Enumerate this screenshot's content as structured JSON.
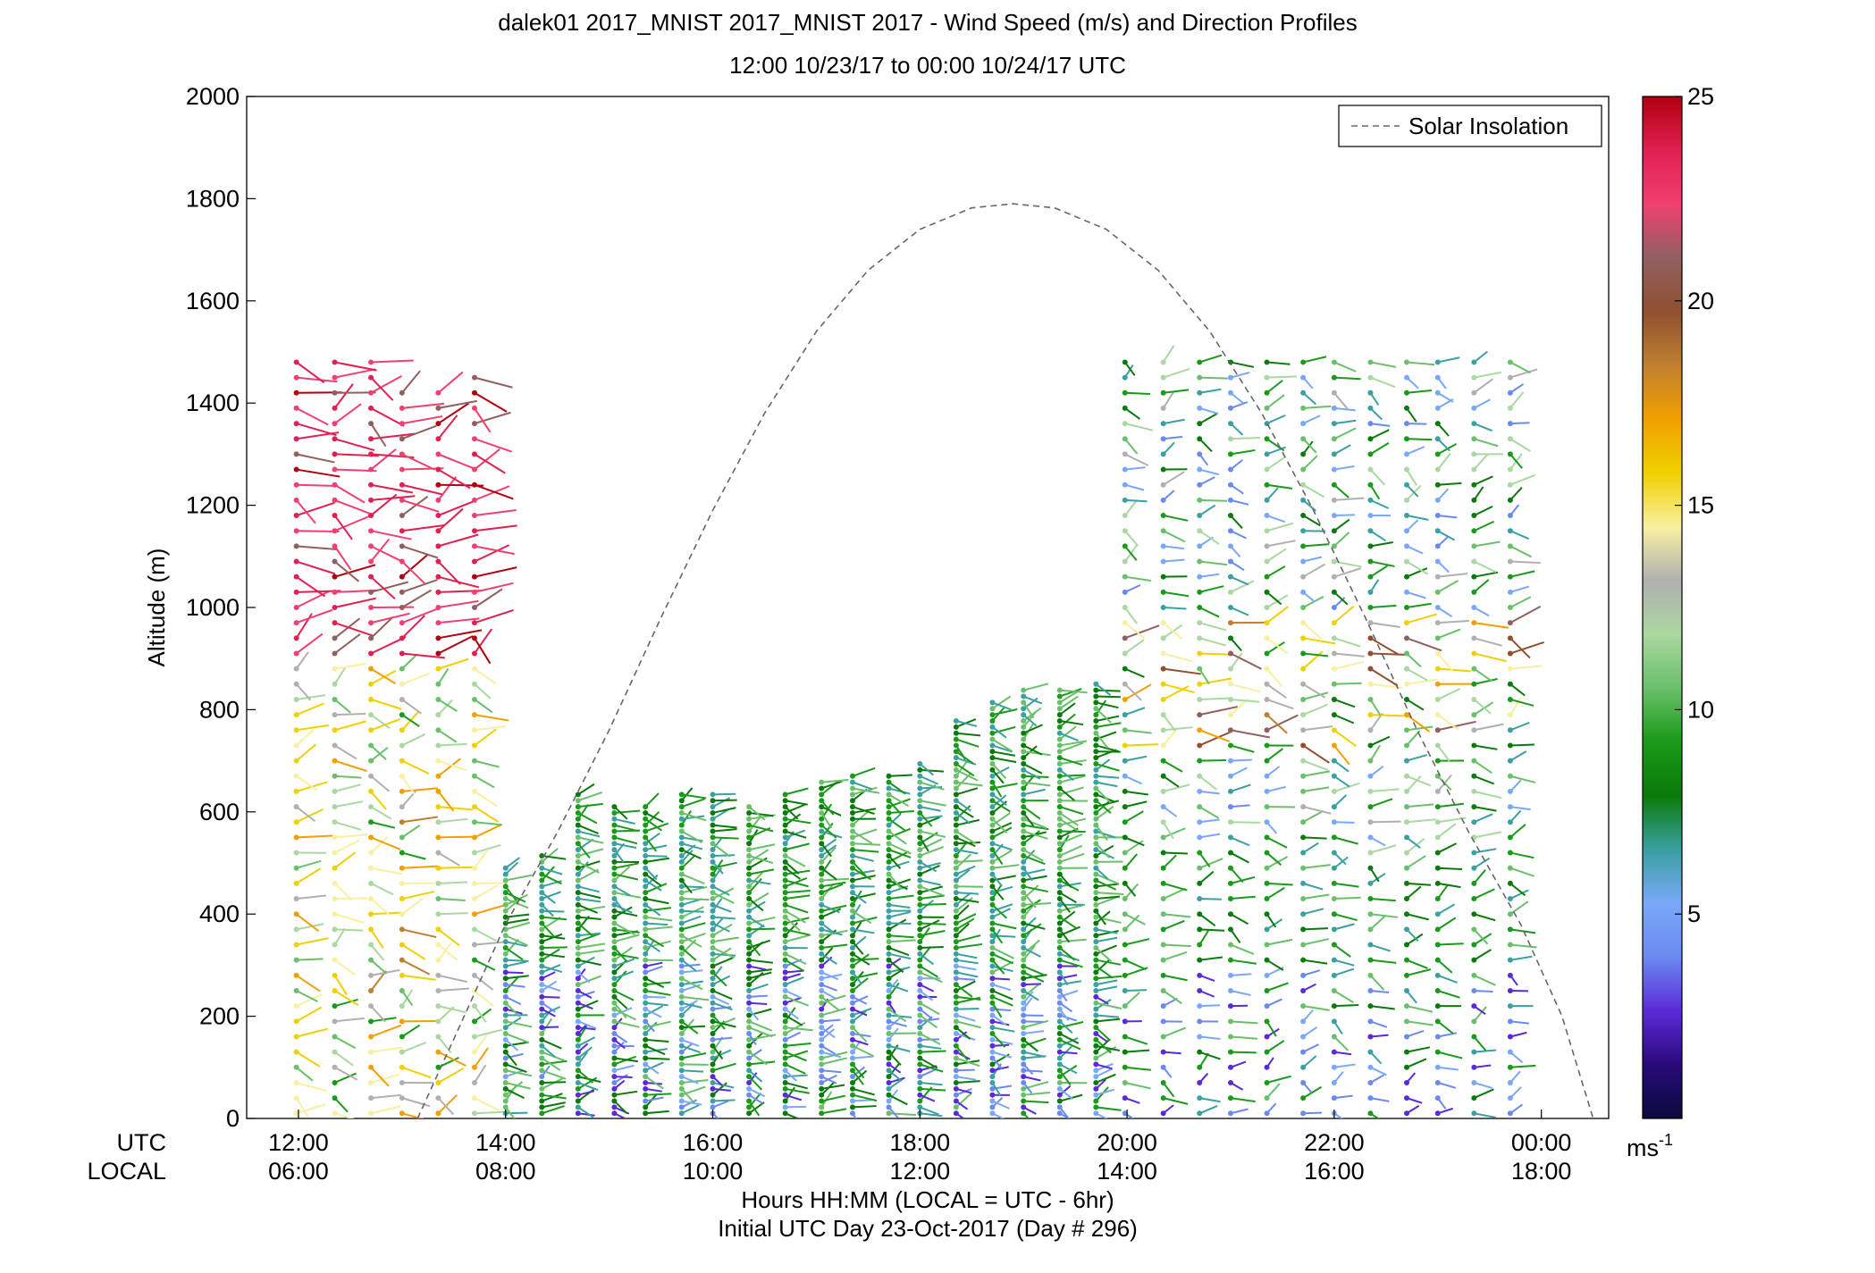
{
  "chart_data": {
    "type": "scatter",
    "title": "dalek01 2017_MNIST 2017_MNIST 2017 - Wind Speed (m/s) and Direction Profiles",
    "subtitle": "12:00 10/23/17 to 00:00 10/24/17  UTC",
    "ylabel": "Altitude (m)",
    "xlabel": "Hours HH:MM  (LOCAL = UTC - 6hr)",
    "xlabel2": "Initial UTC Day 23-Oct-2017 (Day # 296)",
    "x_row_label_utc": "UTC",
    "x_row_label_local": "LOCAL",
    "xlim_hours_utc": [
      11.5,
      24.65
    ],
    "ylim": [
      0,
      2000
    ],
    "yticks": [
      0,
      200,
      400,
      600,
      800,
      1000,
      1200,
      1400,
      1600,
      1800,
      2000
    ],
    "xticks": [
      {
        "h": 12,
        "utc": "12:00",
        "local": "06:00"
      },
      {
        "h": 14,
        "utc": "14:00",
        "local": "08:00"
      },
      {
        "h": 16,
        "utc": "16:00",
        "local": "10:00"
      },
      {
        "h": 18,
        "utc": "18:00",
        "local": "12:00"
      },
      {
        "h": 20,
        "utc": "20:00",
        "local": "14:00"
      },
      {
        "h": 22,
        "utc": "22:00",
        "local": "16:00"
      },
      {
        "h": 24,
        "utc": "00:00",
        "local": "18:00"
      }
    ],
    "grid": false,
    "legend": {
      "label": "Solar Insolation",
      "position": "top-right",
      "style": "dashed",
      "color": "#666666"
    },
    "solar_insolation": [
      [
        13.15,
        0
      ],
      [
        13.6,
        200
      ],
      [
        14.0,
        380
      ],
      [
        14.5,
        560
      ],
      [
        15.0,
        760
      ],
      [
        15.5,
        980
      ],
      [
        16.0,
        1190
      ],
      [
        16.5,
        1380
      ],
      [
        17.0,
        1540
      ],
      [
        17.5,
        1660
      ],
      [
        18.0,
        1740
      ],
      [
        18.5,
        1782
      ],
      [
        18.9,
        1790
      ],
      [
        19.3,
        1782
      ],
      [
        19.8,
        1740
      ],
      [
        20.3,
        1660
      ],
      [
        20.8,
        1540
      ],
      [
        21.3,
        1380
      ],
      [
        21.8,
        1190
      ],
      [
        22.3,
        980
      ],
      [
        22.8,
        760
      ],
      [
        23.3,
        560
      ],
      [
        23.8,
        380
      ],
      [
        24.2,
        200
      ],
      [
        24.5,
        0
      ]
    ],
    "colorbar": {
      "label": "ms",
      "label_exponent": "-1",
      "ticks": [
        5,
        10,
        15,
        20,
        25
      ],
      "range": [
        0,
        25
      ],
      "stops": [
        "#0a0a3c",
        "#2a0a7a",
        "#5a2ad8",
        "#6a8af0",
        "#7aa8f8",
        "#3aa0a0",
        "#0a7a0a",
        "#1a9a1a",
        "#6ac06a",
        "#aad8a0",
        "#b0b0b0",
        "#f8f0a0",
        "#f0d000",
        "#f0a000",
        "#c08030",
        "#905030",
        "#906060",
        "#f04070",
        "#e02050",
        "#b00010"
      ]
    },
    "profiles": [
      {
        "x": 11.98,
        "y_bottom": 0,
        "y_top": 1490
      },
      {
        "x": 12.35,
        "y_bottom": 0,
        "y_top": 1480
      },
      {
        "x": 12.7,
        "y_bottom": 0,
        "y_top": 1480
      },
      {
        "x": 13.0,
        "y_bottom": 0,
        "y_top": 1440
      },
      {
        "x": 13.35,
        "y_bottom": 0,
        "y_top": 1440
      },
      {
        "x": 13.7,
        "y_bottom": 0,
        "y_top": 1450
      },
      {
        "x": 14.0,
        "y_bottom": 0,
        "y_top": 500
      },
      {
        "x": 14.35,
        "y_bottom": 0,
        "y_top": 520
      },
      {
        "x": 14.7,
        "y_bottom": 0,
        "y_top": 640
      },
      {
        "x": 15.05,
        "y_bottom": 0,
        "y_top": 620
      },
      {
        "x": 15.35,
        "y_bottom": 0,
        "y_top": 620
      },
      {
        "x": 15.7,
        "y_bottom": 0,
        "y_top": 640
      },
      {
        "x": 16.0,
        "y_bottom": 0,
        "y_top": 640
      },
      {
        "x": 16.35,
        "y_bottom": 0,
        "y_top": 620
      },
      {
        "x": 16.7,
        "y_bottom": 0,
        "y_top": 640
      },
      {
        "x": 17.05,
        "y_bottom": 0,
        "y_top": 660
      },
      {
        "x": 17.35,
        "y_bottom": 0,
        "y_top": 680
      },
      {
        "x": 17.7,
        "y_bottom": 0,
        "y_top": 680
      },
      {
        "x": 18.0,
        "y_bottom": 0,
        "y_top": 700
      },
      {
        "x": 18.35,
        "y_bottom": 0,
        "y_top": 780
      },
      {
        "x": 18.7,
        "y_bottom": 0,
        "y_top": 820
      },
      {
        "x": 19.0,
        "y_bottom": 0,
        "y_top": 840
      },
      {
        "x": 19.35,
        "y_bottom": 0,
        "y_top": 840
      },
      {
        "x": 19.7,
        "y_bottom": 0,
        "y_top": 860
      },
      {
        "x": 19.98,
        "y_bottom": 0,
        "y_top": 1500
      },
      {
        "x": 20.35,
        "y_bottom": 0,
        "y_top": 1490
      },
      {
        "x": 20.7,
        "y_bottom": 0,
        "y_top": 1490
      },
      {
        "x": 21.0,
        "y_bottom": 0,
        "y_top": 1490
      },
      {
        "x": 21.35,
        "y_bottom": 0,
        "y_top": 1490
      },
      {
        "x": 21.7,
        "y_bottom": 0,
        "y_top": 1490
      },
      {
        "x": 22.0,
        "y_bottom": 0,
        "y_top": 1490
      },
      {
        "x": 22.35,
        "y_bottom": 0,
        "y_top": 1490
      },
      {
        "x": 22.7,
        "y_bottom": 0,
        "y_top": 1490
      },
      {
        "x": 23.0,
        "y_bottom": 0,
        "y_top": 1490
      },
      {
        "x": 23.35,
        "y_bottom": 0,
        "y_top": 1490
      },
      {
        "x": 23.7,
        "y_bottom": 0,
        "y_top": 1490
      }
    ]
  }
}
